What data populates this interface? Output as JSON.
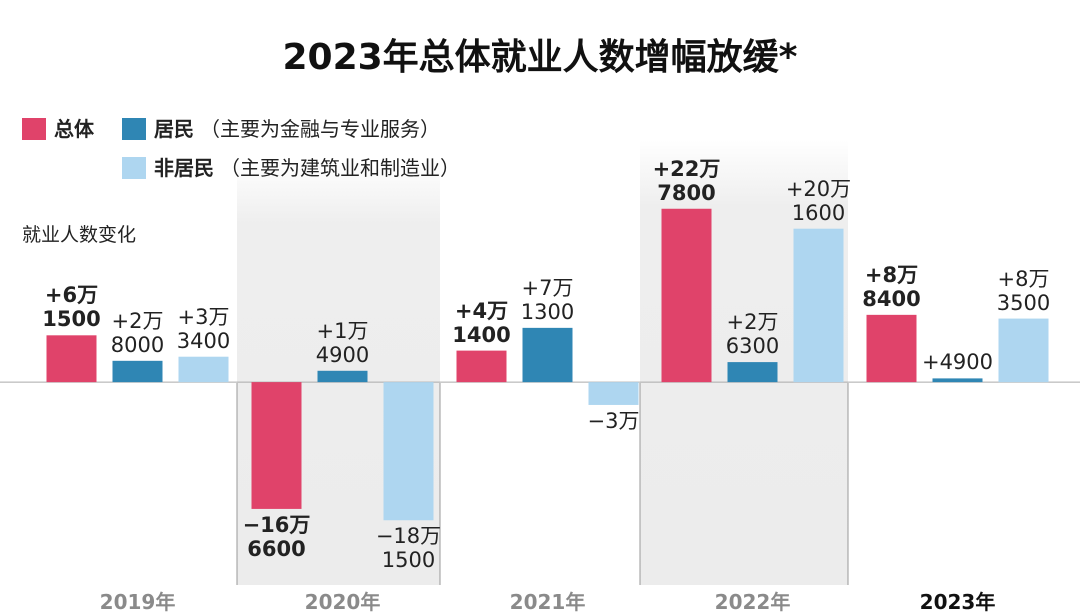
{
  "chart_data": {
    "type": "bar",
    "title": "2023年总体就业人数增幅放缓*",
    "y_label": "就业人数变化",
    "categories": [
      "2019年",
      "2020年",
      "2021年",
      "2022年",
      "2023年"
    ],
    "series": [
      {
        "name": "总体",
        "color": "#e0436a",
        "values": [
          61500,
          -166600,
          41400,
          227800,
          88400
        ],
        "value_labels": [
          "+6万\n1500",
          "−16万\n6600",
          "+4万\n1400",
          "+22万\n7800",
          "+8万\n8400"
        ]
      },
      {
        "name": "居民",
        "color": "#2f86b4",
        "values": [
          28000,
          14900,
          71300,
          26300,
          4900
        ],
        "value_labels": [
          "+2万\n8000",
          "+1万\n4900",
          "+7万\n1300",
          "+2万\n6300",
          "+4900"
        ]
      },
      {
        "name": "非居民",
        "color": "#aed6f0",
        "values": [
          33400,
          -181500,
          -30000,
          201600,
          83500
        ],
        "value_labels": [
          "+3万\n3400",
          "−18万\n1500",
          "−3万",
          "+20万\n1600",
          "+8万\n3500"
        ]
      }
    ],
    "legend_notes": [
      "（主要为金融与专业服务）",
      "（主要为建筑业和制造业）"
    ],
    "ylim": [
      -260000,
      305000
    ]
  }
}
